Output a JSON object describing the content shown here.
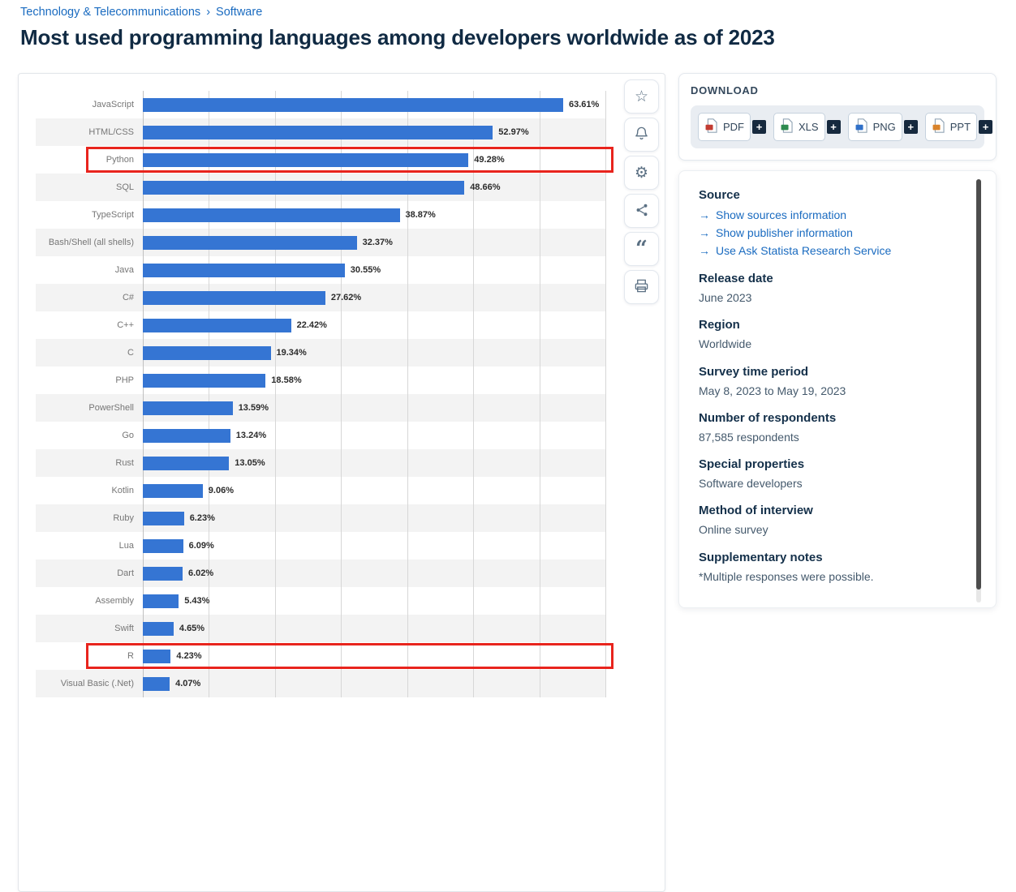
{
  "breadcrumb": {
    "items": [
      "Technology & Telecommunications",
      "Software"
    ],
    "separator": "›"
  },
  "page_title": "Most used programming languages among developers worldwide as of 2023",
  "chart_data": {
    "type": "bar",
    "orientation": "horizontal",
    "title": "Most used programming languages among developers worldwide as of 2023",
    "categories": [
      "JavaScript",
      "HTML/CSS",
      "Python",
      "SQL",
      "TypeScript",
      "Bash/Shell (all shells)",
      "Java",
      "C#",
      "C++",
      "C",
      "PHP",
      "PowerShell",
      "Go",
      "Rust",
      "Kotlin",
      "Ruby",
      "Lua",
      "Dart",
      "Assembly",
      "Swift",
      "R",
      "Visual Basic (.Net)"
    ],
    "values": [
      63.61,
      52.97,
      49.28,
      48.66,
      38.87,
      32.37,
      30.55,
      27.62,
      22.42,
      19.34,
      18.58,
      13.59,
      13.24,
      13.05,
      9.06,
      6.23,
      6.09,
      6.02,
      5.43,
      4.65,
      4.23,
      4.07
    ],
    "labels": [
      "63.61%",
      "52.97%",
      "49.28%",
      "48.66%",
      "38.87%",
      "32.37%",
      "30.55%",
      "27.62%",
      "22.42%",
      "19.34%",
      "18.58%",
      "13.59%",
      "13.24%",
      "13.05%",
      "9.06%",
      "6.23%",
      "6.09%",
      "6.02%",
      "5.43%",
      "4.65%",
      "4.23%",
      "4.07%"
    ],
    "xlim": [
      0,
      70
    ],
    "gridline_interval": 10,
    "grid": true,
    "bar_color": "#3575d3",
    "highlighted_rows": [
      "Python",
      "R"
    ],
    "highlight_color": "#e8241d"
  },
  "toolbar": {
    "buttons": [
      {
        "name": "favorite",
        "icon": "star-icon"
      },
      {
        "name": "alerts",
        "icon": "bell-icon"
      },
      {
        "name": "settings",
        "icon": "gear-icon"
      },
      {
        "name": "share",
        "icon": "share-icon"
      },
      {
        "name": "cite",
        "icon": "quote-icon"
      },
      {
        "name": "print",
        "icon": "print-icon"
      }
    ]
  },
  "download": {
    "title": "DOWNLOAD",
    "plus_label": "+",
    "buttons": [
      {
        "label": "PDF",
        "color": "#c23c32"
      },
      {
        "label": "XLS",
        "color": "#2e8b4f"
      },
      {
        "label": "PNG",
        "color": "#3070c8"
      },
      {
        "label": "PPT",
        "color": "#d9832b"
      }
    ]
  },
  "source_panel": {
    "link_arrow": "→",
    "sections": [
      {
        "heading": "Source",
        "links": [
          "Show sources information",
          "Show publisher information",
          "Use Ask Statista Research Service"
        ]
      },
      {
        "heading": "Release date",
        "text": "June 2023"
      },
      {
        "heading": "Region",
        "text": "Worldwide"
      },
      {
        "heading": "Survey time period",
        "text": "May 8, 2023 to May 19, 2023"
      },
      {
        "heading": "Number of respondents",
        "text": "87,585 respondents"
      },
      {
        "heading": "Special properties",
        "text": "Software developers"
      },
      {
        "heading": "Method of interview",
        "text": "Online survey"
      },
      {
        "heading": "Supplementary notes",
        "text": "*Multiple responses were possible."
      }
    ]
  }
}
